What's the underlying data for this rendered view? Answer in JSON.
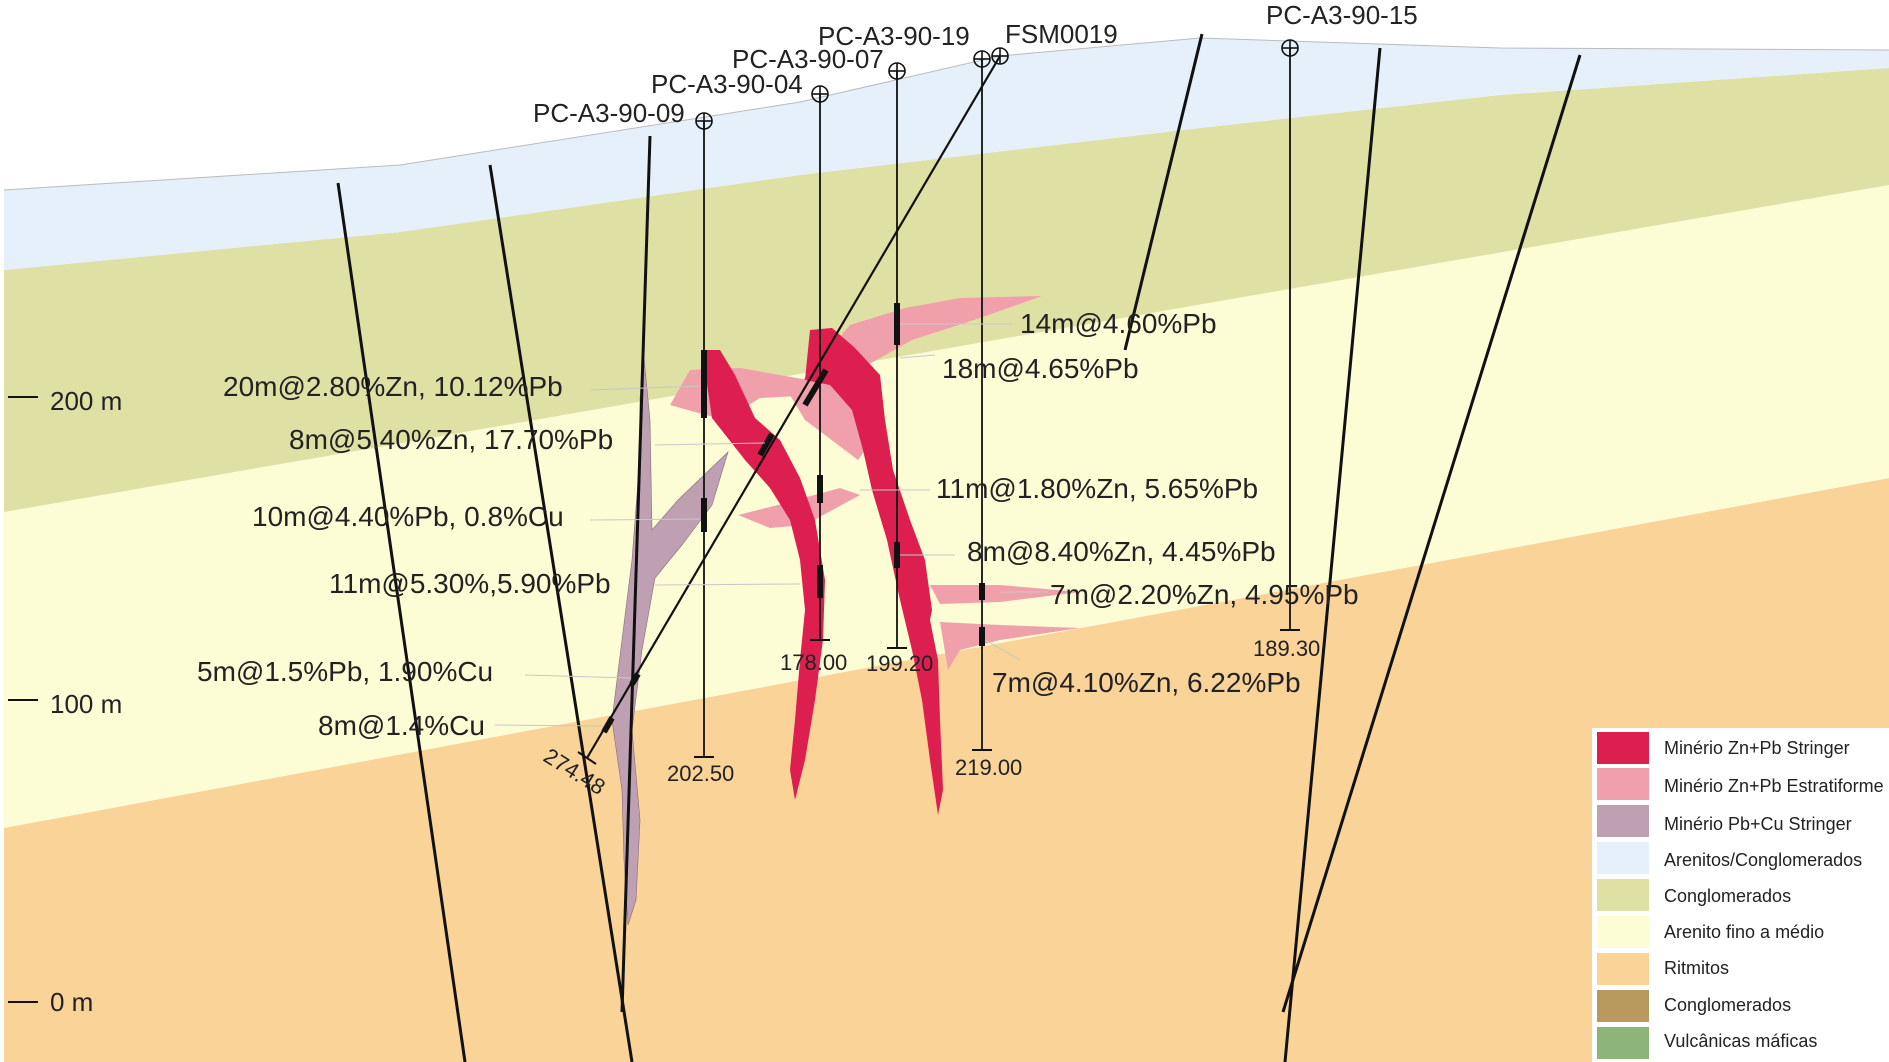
{
  "colors": {
    "arenitos_conglomerados": "#e6f0fb",
    "conglomerados": "#dfe0a4",
    "arenito_fino": "#fdfdd5",
    "ritmitos": "#f9d398",
    "conglomerados_base": "#b99a5e",
    "vulcanicas": "#8db57a",
    "zn_pb_stringer": "#dc1f4e",
    "zn_pb_estratiforme": "#f0a0aa",
    "pb_cu_stringer": "#bfa0b2"
  },
  "scale": {
    "labels": [
      "200 m",
      "100 m",
      "0 m"
    ]
  },
  "drillholes": [
    {
      "name": "PC-A3-90-09",
      "depth": "202.50"
    },
    {
      "name": "PC-A3-90-04",
      "depth": "178.00"
    },
    {
      "name": "PC-A3-90-07",
      "depth": "199.20"
    },
    {
      "name": "PC-A3-90-19",
      "depth": "219.00"
    },
    {
      "name": "FSM0019",
      "depth": "274.48"
    },
    {
      "name": "PC-A3-90-15",
      "depth": "189.30"
    }
  ],
  "intervals": [
    "14m@4.60%Pb",
    "18m@4.65%Pb",
    "20m@2.80%Zn, 10.12%Pb",
    "8m@5.40%Zn, 17.70%Pb",
    "11m@1.80%Zn, 5.65%Pb",
    "10m@4.40%Pb, 0.8%Cu",
    "8m@8.40%Zn, 4.45%Pb",
    "11m@5.30%,5.90%Pb",
    "7m@2.20%Zn, 4.95%Pb",
    "5m@1.5%Pb, 1.90%Cu",
    "7m@4.10%Zn, 6.22%Pb",
    "8m@1.4%Cu"
  ],
  "legend": [
    {
      "label": "Minério Zn+Pb Stringer",
      "color": "#dc1f4e"
    },
    {
      "label": "Minério Zn+Pb Estratiforme",
      "color": "#f0a0aa"
    },
    {
      "label": "Minério Pb+Cu Stringer",
      "color": "#bfa0b2"
    },
    {
      "label": "Arenitos/Conglomerados",
      "color": "#e6f0fb"
    },
    {
      "label": "Conglomerados",
      "color": "#dfe0a4"
    },
    {
      "label": "Arenito fino a médio",
      "color": "#fdfdd5"
    },
    {
      "label": "Ritmitos",
      "color": "#f9d398"
    },
    {
      "label": "Conglomerados",
      "color": "#b99a5e"
    },
    {
      "label": "Vulcânicas máficas",
      "color": "#8db57a"
    }
  ]
}
